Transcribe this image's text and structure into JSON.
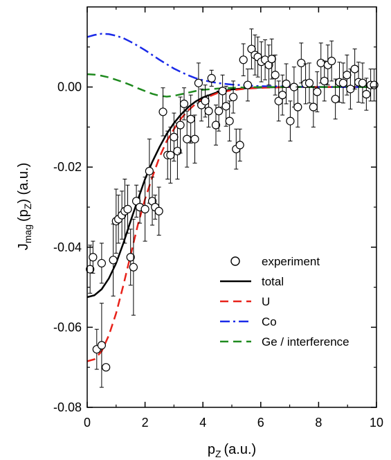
{
  "chart_data": {
    "type": "line",
    "xlabel": "p",
    "xlabel_sub": "Z",
    "xlabel_unit": "(a.u.)",
    "ylabel_main": "J",
    "ylabel_sub": "mag",
    "ylabel_arg": "(p",
    "ylabel_arg_sub": "Z",
    "ylabel_unit": ") (a.u.)",
    "xlim": [
      0,
      10
    ],
    "ylim": [
      -0.08,
      0.02
    ],
    "xticks": [
      0,
      2,
      4,
      6,
      8,
      10
    ],
    "xtick_labels": [
      "0",
      "2",
      "4",
      "6",
      "8",
      "10"
    ],
    "yticks": [
      -0.08,
      -0.06,
      -0.04,
      -0.02,
      0.0
    ],
    "ytick_labels": [
      "-0.08",
      "-0.06",
      "-0.04",
      "-0.02",
      "0.00"
    ],
    "grid": false,
    "legend_position": "lower-right",
    "series": [
      {
        "name": "experiment",
        "kind": "scatter-errorbar",
        "color": "#000000",
        "points": [
          {
            "x": 0.1,
            "y": -0.0455,
            "err": 0.006
          },
          {
            "x": 0.2,
            "y": -0.0425,
            "err": 0.004
          },
          {
            "x": 0.33,
            "y": -0.0655,
            "err": 0.005
          },
          {
            "x": 0.5,
            "y": -0.0645,
            "err": 0.0105
          },
          {
            "x": 0.5,
            "y": -0.044,
            "err": 0.005
          },
          {
            "x": 0.65,
            "y": -0.07,
            "err": 0.0
          },
          {
            "x": 0.9,
            "y": -0.0432,
            "err": 0.009
          },
          {
            "x": 1.0,
            "y": -0.0335,
            "err": 0.008
          },
          {
            "x": 1.08,
            "y": -0.033,
            "err": 0.006
          },
          {
            "x": 1.2,
            "y": -0.032,
            "err": 0.006
          },
          {
            "x": 1.3,
            "y": -0.031,
            "err": 0.008
          },
          {
            "x": 1.4,
            "y": -0.0305,
            "err": 0.006
          },
          {
            "x": 1.5,
            "y": -0.0425,
            "err": 0.007
          },
          {
            "x": 1.6,
            "y": -0.045,
            "err": 0.012
          },
          {
            "x": 1.7,
            "y": -0.0285,
            "err": 0.004
          },
          {
            "x": 1.82,
            "y": -0.03,
            "err": 0.004
          },
          {
            "x": 2.0,
            "y": -0.0305,
            "err": 0.008
          },
          {
            "x": 2.15,
            "y": -0.021,
            "err": 0.008
          },
          {
            "x": 2.25,
            "y": -0.0285,
            "err": 0.006
          },
          {
            "x": 2.35,
            "y": -0.03,
            "err": 0.003
          },
          {
            "x": 2.48,
            "y": -0.031,
            "err": 0.006
          },
          {
            "x": 2.62,
            "y": -0.0062,
            "err": 0.006
          },
          {
            "x": 2.78,
            "y": -0.017,
            "err": 0.006
          },
          {
            "x": 2.88,
            "y": -0.017,
            "err": 0.007
          },
          {
            "x": 3.0,
            "y": -0.0125,
            "err": 0.006
          },
          {
            "x": 3.12,
            "y": -0.016,
            "err": 0.007
          },
          {
            "x": 3.22,
            "y": -0.0095,
            "err": 0.007
          },
          {
            "x": 3.35,
            "y": -0.0042,
            "err": 0.004
          },
          {
            "x": 3.45,
            "y": -0.013,
            "err": 0.007
          },
          {
            "x": 3.58,
            "y": -0.008,
            "err": 0.006
          },
          {
            "x": 3.72,
            "y": -0.013,
            "err": 0.006
          },
          {
            "x": 3.85,
            "y": 0.001,
            "err": 0.005
          },
          {
            "x": 3.95,
            "y": -0.0045,
            "err": 0.004
          },
          {
            "x": 4.08,
            "y": -0.0035,
            "err": 0.004
          },
          {
            "x": 4.2,
            "y": -0.006,
            "err": 0.004
          },
          {
            "x": 4.3,
            "y": 0.0022,
            "err": 0.002
          },
          {
            "x": 4.45,
            "y": -0.0095,
            "err": 0.005
          },
          {
            "x": 4.55,
            "y": -0.006,
            "err": 0.005
          },
          {
            "x": 4.68,
            "y": -0.001,
            "err": 0.004
          },
          {
            "x": 4.8,
            "y": -0.0048,
            "err": 0.005
          },
          {
            "x": 4.92,
            "y": -0.0085,
            "err": 0.005
          },
          {
            "x": 5.05,
            "y": -0.0025,
            "err": 0.004
          },
          {
            "x": 5.15,
            "y": -0.0155,
            "err": 0.005
          },
          {
            "x": 5.28,
            "y": -0.0145,
            "err": 0.004
          },
          {
            "x": 5.4,
            "y": 0.0068,
            "err": 0.004
          },
          {
            "x": 5.55,
            "y": 0.0005,
            "err": 0.004
          },
          {
            "x": 5.68,
            "y": 0.0095,
            "err": 0.005
          },
          {
            "x": 5.8,
            "y": 0.008,
            "err": 0.005
          },
          {
            "x": 5.9,
            "y": 0.0075,
            "err": 0.005
          },
          {
            "x": 6.02,
            "y": 0.0063,
            "err": 0.005
          },
          {
            "x": 6.15,
            "y": 0.0068,
            "err": 0.005
          },
          {
            "x": 6.28,
            "y": 0.0055,
            "err": 0.005
          },
          {
            "x": 6.38,
            "y": 0.007,
            "err": 0.005
          },
          {
            "x": 6.5,
            "y": 0.003,
            "err": 0.005
          },
          {
            "x": 6.62,
            "y": -0.0035,
            "err": 0.005
          },
          {
            "x": 6.75,
            "y": -0.002,
            "err": 0.005
          },
          {
            "x": 6.88,
            "y": 0.0008,
            "err": 0.005
          },
          {
            "x": 7.02,
            "y": -0.0085,
            "err": 0.005
          },
          {
            "x": 7.15,
            "y": 0.0,
            "err": 0.005
          },
          {
            "x": 7.28,
            "y": -0.005,
            "err": 0.005
          },
          {
            "x": 7.4,
            "y": 0.006,
            "err": 0.005
          },
          {
            "x": 7.55,
            "y": 0.0008,
            "err": 0.005
          },
          {
            "x": 7.68,
            "y": 0.001,
            "err": 0.005
          },
          {
            "x": 7.82,
            "y": -0.005,
            "err": 0.005
          },
          {
            "x": 7.95,
            "y": -0.0012,
            "err": 0.005
          },
          {
            "x": 8.08,
            "y": 0.006,
            "err": 0.005
          },
          {
            "x": 8.2,
            "y": 0.0015,
            "err": 0.005
          },
          {
            "x": 8.32,
            "y": 0.0055,
            "err": 0.005
          },
          {
            "x": 8.45,
            "y": 0.0065,
            "err": 0.005
          },
          {
            "x": 8.58,
            "y": -0.003,
            "err": 0.005
          },
          {
            "x": 8.72,
            "y": 0.0012,
            "err": 0.005
          },
          {
            "x": 8.85,
            "y": 0.001,
            "err": 0.005
          },
          {
            "x": 8.98,
            "y": 0.003,
            "err": 0.005
          },
          {
            "x": 9.1,
            "y": -0.0005,
            "err": 0.005
          },
          {
            "x": 9.25,
            "y": 0.0045,
            "err": 0.005
          },
          {
            "x": 9.38,
            "y": 0.0012,
            "err": 0.005
          },
          {
            "x": 9.52,
            "y": 0.001,
            "err": 0.005
          },
          {
            "x": 9.65,
            "y": -0.0018,
            "err": 0.004
          },
          {
            "x": 9.8,
            "y": 0.0005,
            "err": 0.004
          },
          {
            "x": 9.92,
            "y": 0.0005,
            "err": 0.004
          }
        ]
      },
      {
        "name": "total",
        "kind": "line",
        "color": "#000000",
        "dash": "solid",
        "x": [
          0,
          0.25,
          0.5,
          0.75,
          1.0,
          1.25,
          1.5,
          1.75,
          2.0,
          2.25,
          2.5,
          2.75,
          3.0,
          3.25,
          3.5,
          3.75,
          4.0,
          4.5,
          5.0,
          5.5,
          6.0,
          7.0,
          8.0,
          9.0,
          10.0
        ],
        "y": [
          -0.0525,
          -0.052,
          -0.0505,
          -0.0478,
          -0.044,
          -0.039,
          -0.0335,
          -0.0282,
          -0.023,
          -0.0187,
          -0.015,
          -0.0117,
          -0.009,
          -0.0068,
          -0.005,
          -0.0036,
          -0.0026,
          -0.0013,
          -0.0006,
          -0.0003,
          -0.0001,
          0.0,
          0.0,
          0.0,
          0.0
        ]
      },
      {
        "name": "U",
        "kind": "line",
        "color": "#e8221a",
        "dash": "dashed",
        "x": [
          0,
          0.25,
          0.5,
          0.75,
          1.0,
          1.25,
          1.5,
          1.75,
          2.0,
          2.25,
          2.5,
          2.75,
          3.0,
          3.25,
          3.5,
          3.75,
          4.0,
          4.5,
          5.0,
          5.5,
          6.0,
          7.0,
          8.0,
          9.0,
          10.0
        ],
        "y": [
          -0.0685,
          -0.068,
          -0.066,
          -0.062,
          -0.0565,
          -0.0495,
          -0.042,
          -0.0345,
          -0.028,
          -0.0225,
          -0.0175,
          -0.0135,
          -0.0105,
          -0.0078,
          -0.0058,
          -0.0042,
          -0.003,
          -0.0015,
          -0.0008,
          -0.0004,
          -0.0002,
          0.0,
          0.0,
          0.0,
          0.0
        ]
      },
      {
        "name": "Co",
        "kind": "line",
        "color": "#1a2ae8",
        "dash": "dash-dot",
        "x": [
          0,
          0.25,
          0.5,
          0.75,
          1.0,
          1.25,
          1.5,
          1.75,
          2.0,
          2.25,
          2.5,
          2.75,
          3.0,
          3.25,
          3.5,
          3.75,
          4.0,
          4.5,
          5.0,
          5.5,
          6.0,
          7.0,
          8.0,
          9.0,
          10.0
        ],
        "y": [
          0.0125,
          0.013,
          0.0133,
          0.0132,
          0.0128,
          0.0122,
          0.0113,
          0.0103,
          0.0092,
          0.008,
          0.0068,
          0.0057,
          0.0046,
          0.0037,
          0.0029,
          0.0022,
          0.0017,
          0.001,
          0.0006,
          0.0004,
          0.0002,
          0.0001,
          0.0,
          0.0,
          0.0
        ]
      },
      {
        "name": "Ge / interference",
        "kind": "line",
        "color": "#1f8a1f",
        "dash": "dashed",
        "x": [
          0,
          0.25,
          0.5,
          0.75,
          1.0,
          1.25,
          1.5,
          1.75,
          2.0,
          2.25,
          2.5,
          2.75,
          3.0,
          3.25,
          3.5,
          3.75,
          4.0,
          4.5,
          5.0,
          5.5,
          6.0,
          7.0,
          8.0,
          9.0,
          10.0
        ],
        "y": [
          0.0032,
          0.0031,
          0.0028,
          0.0024,
          0.0018,
          0.0012,
          0.0005,
          -0.0003,
          -0.001,
          -0.0017,
          -0.0022,
          -0.0024,
          -0.0022,
          -0.0018,
          -0.0014,
          -0.001,
          -0.0007,
          -0.0004,
          -0.0002,
          -0.0001,
          0.0,
          0.0,
          0.0,
          0.0,
          0.0
        ]
      }
    ]
  }
}
